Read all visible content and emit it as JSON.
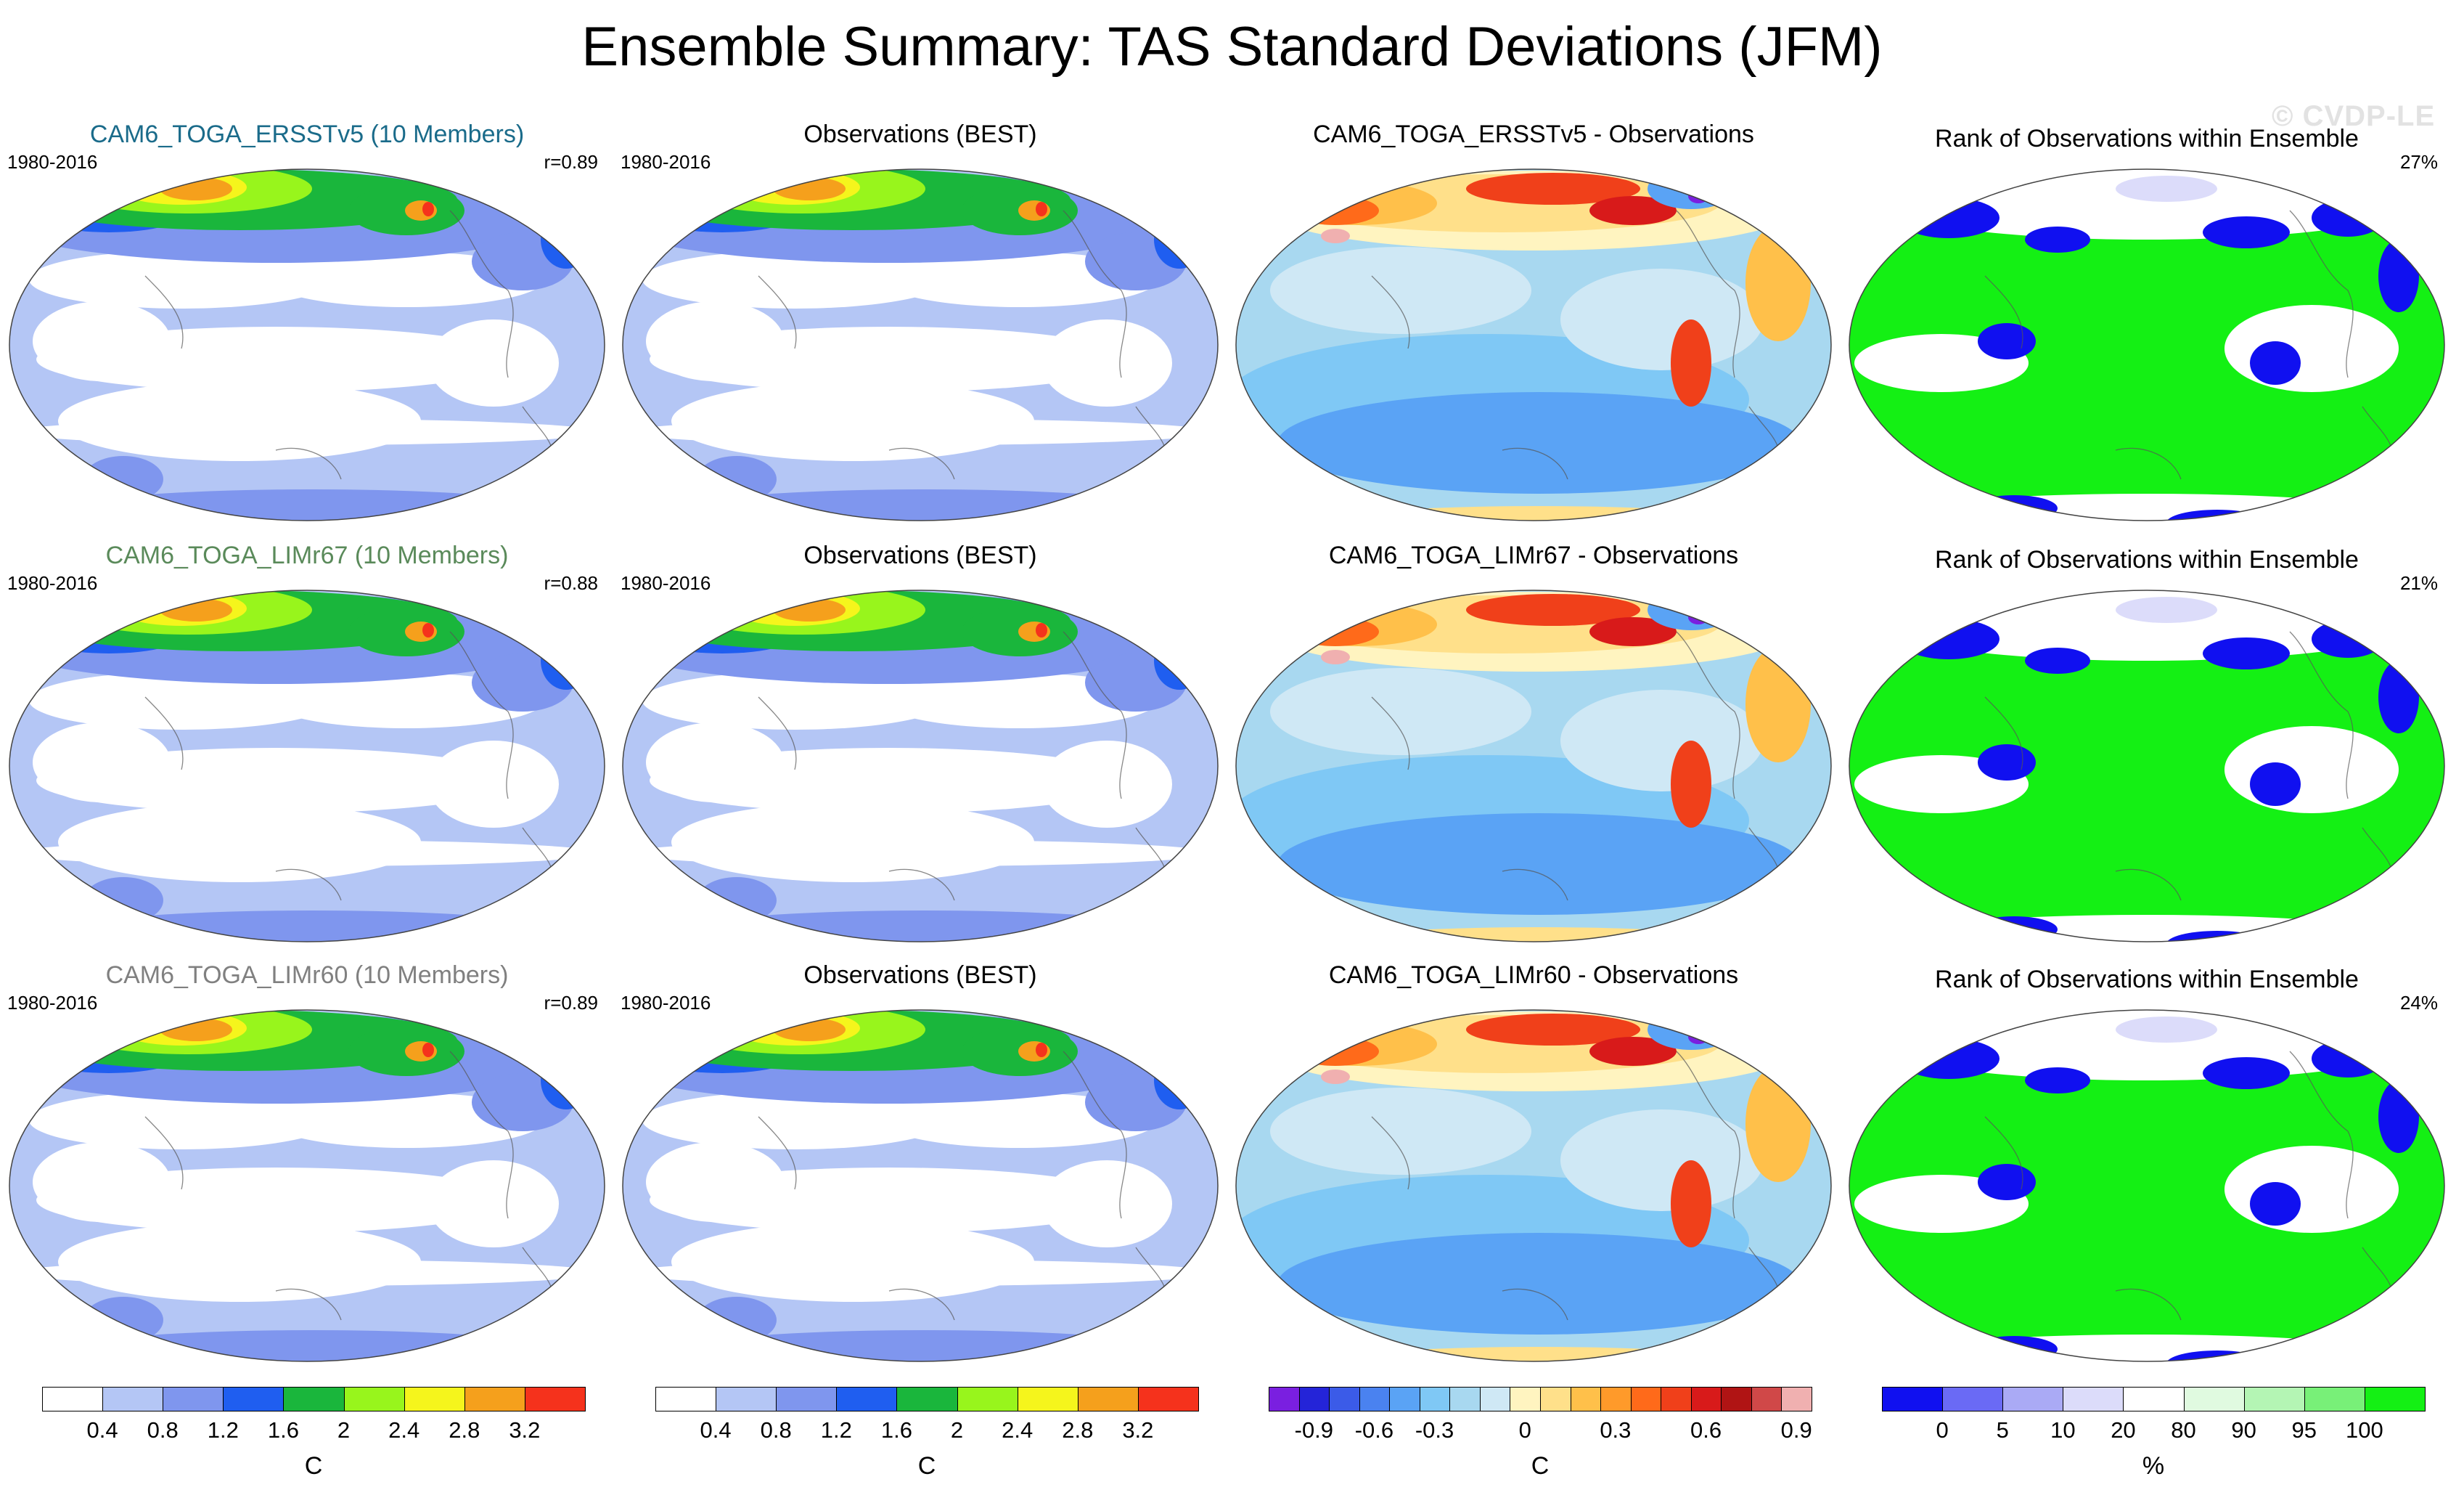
{
  "title": "Ensemble Summary: TAS Standard Deviations (JFM)",
  "watermark": "© CVDP-LE",
  "rows": [
    {
      "ensemble": {
        "title": "CAM6_TOGA_ERSSTv5 (10 Members)",
        "title_color": "#1a6b8a",
        "period": "1980-2016",
        "corr": "r=0.89"
      },
      "obs": {
        "title": "Observations (BEST)",
        "period": "1980-2016"
      },
      "diff": {
        "title": "CAM6_TOGA_ERSSTv5 - Observations"
      },
      "rank": {
        "title": "Rank of Observations within Ensemble",
        "pct": "27%"
      }
    },
    {
      "ensemble": {
        "title": "CAM6_TOGA_LIMr67 (10 Members)",
        "title_color": "#5a8a5a",
        "period": "1980-2016",
        "corr": "r=0.88"
      },
      "obs": {
        "title": "Observations (BEST)",
        "period": "1980-2016"
      },
      "diff": {
        "title": "CAM6_TOGA_LIMr67 - Observations"
      },
      "rank": {
        "title": "Rank of Observations within Ensemble",
        "pct": "21%"
      }
    },
    {
      "ensemble": {
        "title": "CAM6_TOGA_LIMr60 (10 Members)",
        "title_color": "#808080",
        "period": "1980-2016",
        "corr": "r=0.89"
      },
      "obs": {
        "title": "Observations (BEST)",
        "period": "1980-2016"
      },
      "diff": {
        "title": "CAM6_TOGA_LIMr60 - Observations"
      },
      "rank": {
        "title": "Rank of Observations within Ensemble",
        "pct": "24%"
      }
    }
  ],
  "colorbars": {
    "stddev": {
      "unit": "C",
      "colors": [
        "#ffffff",
        "#b4c6f5",
        "#7f96ee",
        "#1f5ef0",
        "#1ab63c",
        "#98f51c",
        "#f5f51c",
        "#f5a01c",
        "#f5321c"
      ],
      "ticks": [
        "0.4",
        "0.8",
        "1.2",
        "1.6",
        "2",
        "2.4",
        "2.8",
        "3.2"
      ]
    },
    "diff": {
      "unit": "C",
      "colors": [
        "#7a1fe0",
        "#2424d8",
        "#3b5be8",
        "#4a82f0",
        "#5aa3f5",
        "#7fc8f5",
        "#a8d8f0",
        "#cfe8f5",
        "#fff4c0",
        "#ffe08a",
        "#ffc04a",
        "#ff9a2a",
        "#ff6a1a",
        "#f0401a",
        "#d81a1a",
        "#b01414",
        "#d04848",
        "#f0b0b0"
      ],
      "ticks": [
        "-0.9",
        "-0.6",
        "-0.3",
        "0",
        "0.3",
        "0.6",
        "0.9"
      ]
    },
    "rank": {
      "unit": "%",
      "colors": [
        "#1010f0",
        "#6a6af5",
        "#aaaaf5",
        "#dcdcfa",
        "#ffffff",
        "#e0fae0",
        "#b4f5b4",
        "#78f078",
        "#14f014"
      ],
      "ticks": [
        "0",
        "5",
        "10",
        "20",
        "80",
        "90",
        "95",
        "100"
      ]
    }
  },
  "icons": {
    "map": "robinson-globe-map"
  }
}
